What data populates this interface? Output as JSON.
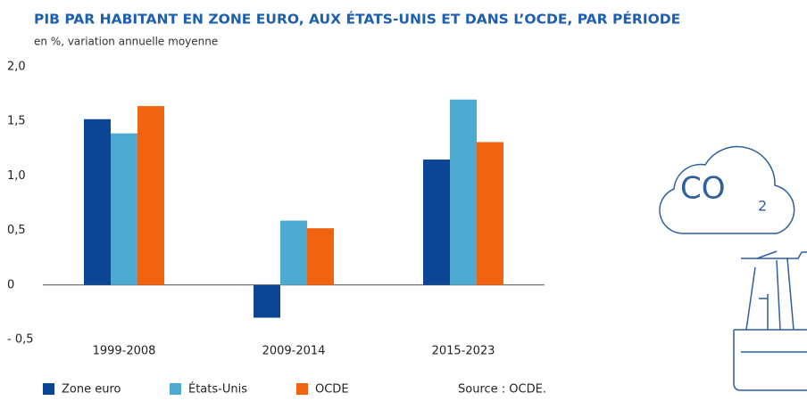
{
  "chart_data": {
    "type": "bar",
    "title": "PIB PAR HABITANT EN ZONE EURO, AUX ÉTATS-UNIS ET DANS L’OCDE, PAR PÉRIODE",
    "subtitle": "en %, variation annuelle moyenne",
    "categories": [
      "1999-2008",
      "2009-2014",
      "2015-2023"
    ],
    "series": [
      {
        "name": "Zone euro",
        "color": "#0b4594",
        "values": [
          1.52,
          -0.3,
          1.15
        ]
      },
      {
        "name": "États-Unis",
        "color": "#4eaad0",
        "values": [
          1.39,
          0.59,
          1.7
        ]
      },
      {
        "name": "OCDE",
        "color": "#f06411",
        "values": [
          1.64,
          0.52,
          1.31
        ]
      }
    ],
    "ylim": [
      -0.5,
      2.0
    ],
    "yticks": [
      {
        "value": 2.0,
        "label": "2,0"
      },
      {
        "value": 1.5,
        "label": "1,5"
      },
      {
        "value": 1.0,
        "label": "1,0"
      },
      {
        "value": 0.5,
        "label": "0,5"
      },
      0,
      {
        "value": -0.5,
        "label": "- 0,5"
      }
    ],
    "grid": false,
    "source": "Source : OCDE.",
    "icon": {
      "label": "CO",
      "subscript": "2"
    }
  }
}
